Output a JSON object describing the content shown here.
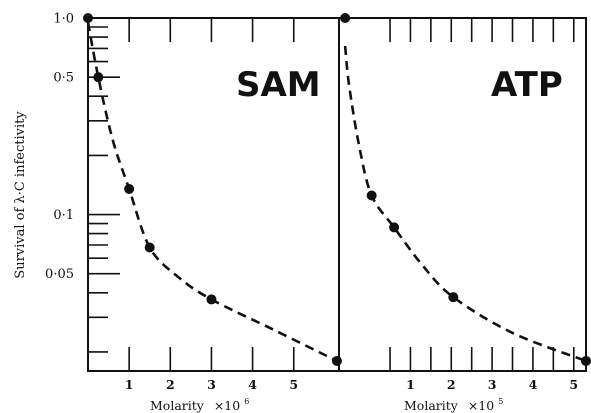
{
  "figure": {
    "ylabel": "Survival of λ·C infectivity",
    "colors": {
      "ink": "#111111",
      "background": "#ffffff"
    }
  },
  "chart_data": [
    {
      "type": "line",
      "panel_label": "SAM",
      "title": "SAM",
      "xlabel": "Molarity",
      "xlabel_multiplier": "×10",
      "xlabel_exponent": "6",
      "ylabel": "Survival of λ·C infectivity",
      "y_scale": "log",
      "xlim": [
        0,
        6.1
      ],
      "ylim": [
        0.016,
        1.0
      ],
      "x_ticks": [
        1,
        2,
        3,
        4,
        5
      ],
      "x_tick_labels": [
        "1",
        "2",
        "3",
        "4",
        "5"
      ],
      "y_tick_labels": [
        {
          "value": 1.0,
          "label": "1·0"
        },
        {
          "value": 0.5,
          "label": "0·5"
        },
        {
          "value": 0.1,
          "label": "0·1"
        },
        {
          "value": 0.05,
          "label": "0·05"
        }
      ],
      "y_minor_ticks": [
        0.9,
        0.8,
        0.7,
        0.6,
        0.4,
        0.3,
        0.2,
        0.09,
        0.08,
        0.07,
        0.06,
        0.04,
        0.03,
        0.02
      ],
      "series": [
        {
          "style": "dashed",
          "points": [
            {
              "x": 0.0,
              "y": 1.0
            },
            {
              "x": 0.25,
              "y": 0.5
            },
            {
              "x": 1.0,
              "y": 0.135
            },
            {
              "x": 1.5,
              "y": 0.068
            },
            {
              "x": 3.0,
              "y": 0.037
            },
            {
              "x": 6.05,
              "y": 0.018
            }
          ],
          "curve": [
            {
              "x": 0.0,
              "y": 0.95
            },
            {
              "x": 0.25,
              "y": 0.5
            },
            {
              "x": 0.6,
              "y": 0.24
            },
            {
              "x": 1.0,
              "y": 0.135
            },
            {
              "x": 1.5,
              "y": 0.068
            },
            {
              "x": 2.2,
              "y": 0.048
            },
            {
              "x": 3.0,
              "y": 0.037
            },
            {
              "x": 4.5,
              "y": 0.026
            },
            {
              "x": 6.05,
              "y": 0.018
            }
          ]
        }
      ]
    },
    {
      "type": "line",
      "panel_label": "ATP",
      "title": "ATP",
      "xlabel": "Molarity",
      "xlabel_multiplier": "×10",
      "xlabel_exponent": "5",
      "y_scale": "log",
      "xlim": [
        -0.75,
        5.3
      ],
      "ylim": [
        0.016,
        1.0
      ],
      "x_ticks": [
        0.5,
        1,
        1.5,
        2,
        2.5,
        3,
        3.5,
        4,
        4.5,
        5
      ],
      "x_tick_labels": [
        {
          "value": 1,
          "label": "1"
        },
        {
          "value": 2,
          "label": "2"
        },
        {
          "value": 3,
          "label": "3"
        },
        {
          "value": 4,
          "label": "4"
        },
        {
          "value": 5,
          "label": "5"
        }
      ],
      "series": [
        {
          "style": "dashed",
          "points": [
            {
              "x": -0.6,
              "y": 1.0
            },
            {
              "x": 0.05,
              "y": 0.125
            },
            {
              "x": 0.6,
              "y": 0.086
            },
            {
              "x": 2.05,
              "y": 0.038
            },
            {
              "x": 5.3,
              "y": 0.018
            }
          ],
          "curve": [
            {
              "x": -0.6,
              "y": 0.72
            },
            {
              "x": -0.5,
              "y": 0.45
            },
            {
              "x": -0.25,
              "y": 0.22
            },
            {
              "x": 0.05,
              "y": 0.125
            },
            {
              "x": 0.6,
              "y": 0.086
            },
            {
              "x": 1.3,
              "y": 0.055
            },
            {
              "x": 2.05,
              "y": 0.038
            },
            {
              "x": 3.5,
              "y": 0.025
            },
            {
              "x": 5.3,
              "y": 0.018
            }
          ]
        }
      ]
    }
  ]
}
